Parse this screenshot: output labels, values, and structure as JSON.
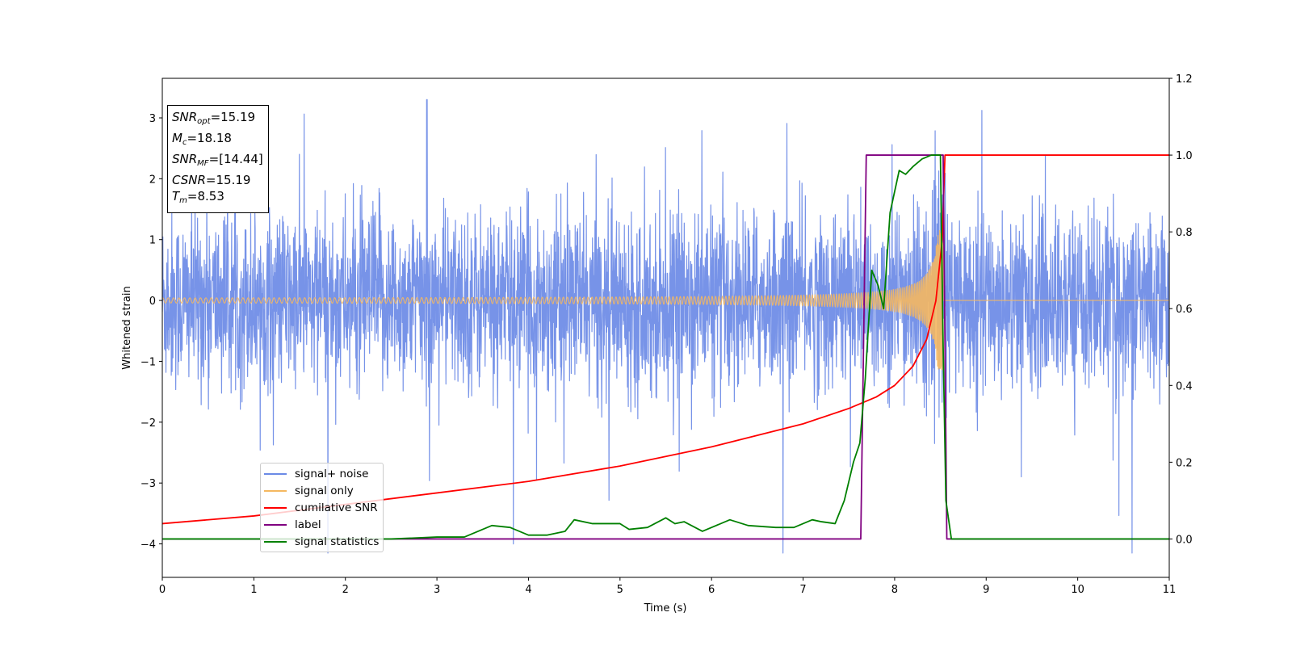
{
  "chart_data": {
    "type": "line",
    "xlabel": "Time (s)",
    "ylabel_left": "Whitened strain",
    "ylabel_right": "",
    "xlim": [
      0,
      11
    ],
    "ylim_left": [
      -4.55,
      3.65
    ],
    "ylim_right": [
      -0.1,
      1.2
    ],
    "xticks": [
      0,
      1,
      2,
      3,
      4,
      5,
      6,
      7,
      8,
      9,
      10,
      11
    ],
    "yticks_left": [
      -4,
      -3,
      -2,
      -1,
      0,
      1,
      2,
      3
    ],
    "yticks_right": [
      0.0,
      0.2,
      0.4,
      0.6,
      0.8,
      1.0,
      1.2
    ],
    "yticks_right_labels": [
      "0.0",
      "0.2",
      "0.4",
      "0.6",
      "0.8",
      "1.0",
      "1.2"
    ],
    "grid": false,
    "legend_position": "lower-left",
    "series": [
      {
        "name": "signal+ noise",
        "color": "#6b8ae6",
        "axis": "left",
        "description_values": {
          "mean": 0.0,
          "typical_range": [
            -1.5,
            1.8
          ],
          "extremes": [
            -4.15,
            3.3
          ]
        }
      },
      {
        "name": "signal only",
        "color": "#f5b860",
        "axis": "left",
        "chirp": {
          "start_amplitude": 0.03,
          "peak_amplitude": 1.15,
          "merger_time": 8.53
        }
      },
      {
        "name": "cumilative SNR",
        "color": "#ff0000",
        "axis": "right",
        "x": [
          0,
          1,
          2,
          3,
          4,
          5,
          6,
          7,
          7.5,
          7.8,
          8.0,
          8.2,
          8.35,
          8.45,
          8.52,
          8.55,
          8.58,
          11
        ],
        "y": [
          0.04,
          0.06,
          0.09,
          0.12,
          0.15,
          0.19,
          0.24,
          0.3,
          0.34,
          0.37,
          0.4,
          0.45,
          0.52,
          0.62,
          0.78,
          1.0,
          1.0,
          1.0
        ]
      },
      {
        "name": "label",
        "color": "#800080",
        "axis": "right",
        "x": [
          0,
          7.63,
          7.69,
          8.53,
          8.57,
          11
        ],
        "y": [
          0.0,
          0.0,
          1.0,
          1.0,
          0.0,
          0.0
        ]
      },
      {
        "name": "signal statistics",
        "color": "#008000",
        "axis": "right",
        "x": [
          0,
          2.5,
          3.0,
          3.3,
          3.6,
          3.8,
          4.0,
          4.2,
          4.4,
          4.5,
          4.7,
          5.0,
          5.1,
          5.3,
          5.5,
          5.6,
          5.7,
          5.9,
          6.2,
          6.4,
          6.7,
          6.9,
          7.1,
          7.2,
          7.35,
          7.45,
          7.55,
          7.62,
          7.68,
          7.75,
          7.82,
          7.88,
          7.95,
          8.05,
          8.12,
          8.2,
          8.3,
          8.4,
          8.5,
          8.53,
          8.56,
          8.62,
          8.7,
          9.0,
          11
        ],
        "y": [
          0.0,
          0.0,
          0.005,
          0.005,
          0.035,
          0.03,
          0.01,
          0.01,
          0.02,
          0.05,
          0.04,
          0.04,
          0.025,
          0.03,
          0.055,
          0.04,
          0.045,
          0.02,
          0.05,
          0.035,
          0.03,
          0.03,
          0.05,
          0.045,
          0.04,
          0.1,
          0.2,
          0.25,
          0.42,
          0.7,
          0.66,
          0.6,
          0.85,
          0.96,
          0.95,
          0.97,
          0.99,
          1.0,
          1.0,
          0.5,
          0.1,
          0.0,
          0.0,
          0.0,
          0.0
        ]
      }
    ]
  },
  "infobox": {
    "snr_opt_label": "SNR",
    "snr_opt_sub": "opt",
    "snr_opt_value": "=15.19",
    "mc_label": "M",
    "mc_sub": "c",
    "mc_value": "=18.18",
    "snr_mf_label": "SNR",
    "snr_mf_sub": "MF",
    "snr_mf_value": "=[14.44]",
    "csnr_label": "CSNR",
    "csnr_value": "=15.19",
    "tm_label": "T",
    "tm_sub": "m",
    "tm_value": "=8.53"
  },
  "legend": {
    "items": [
      {
        "label": "signal+ noise",
        "color": "#6b8ae6"
      },
      {
        "label": "signal only",
        "color": "#f5b860"
      },
      {
        "label": "cumilative SNR",
        "color": "#ff0000"
      },
      {
        "label": "label",
        "color": "#800080"
      },
      {
        "label": "signal statistics",
        "color": "#008000"
      }
    ]
  }
}
